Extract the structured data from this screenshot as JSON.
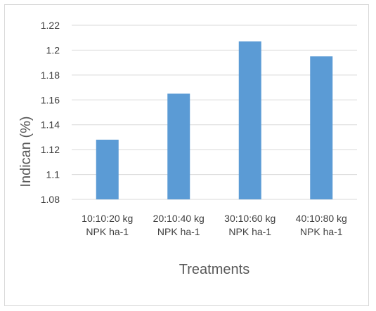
{
  "chart_data": {
    "type": "bar",
    "categories": [
      [
        "10:10:20 kg",
        "NPK ha-1"
      ],
      [
        "20:10:40 kg",
        "NPK ha-1"
      ],
      [
        "30:10:60 kg",
        "NPK ha-1"
      ],
      [
        "40:10:80 kg",
        "NPK ha-1"
      ]
    ],
    "values": [
      1.128,
      1.165,
      1.207,
      1.195
    ],
    "title": "",
    "xlabel": "Treatments",
    "ylabel": "Indican (%)",
    "ylim": [
      1.08,
      1.22
    ],
    "yticks": [
      "1.08",
      "1.1",
      "1.12",
      "1.14",
      "1.16",
      "1.18",
      "1.2",
      "1.22"
    ],
    "grid": true,
    "legend": "none",
    "bar_color": "#5b9bd5",
    "grid_color": "#d9d9d9"
  }
}
